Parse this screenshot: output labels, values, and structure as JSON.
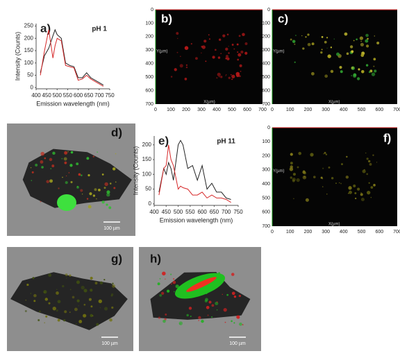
{
  "chart_data": [
    {
      "type": "line",
      "panel_label": "a)",
      "title": "pH 1",
      "x_label": "Emission wavelength (nm)",
      "y_label": "Intensity (Counts)",
      "x": [
        420,
        440,
        460,
        480,
        490,
        500,
        520,
        540,
        560,
        580,
        600,
        620,
        640,
        660,
        680,
        700,
        720
      ],
      "series": [
        {
          "color": "#222222",
          "values": [
            60,
            130,
            160,
            210,
            235,
            215,
            200,
            100,
            90,
            85,
            40,
            40,
            60,
            40,
            30,
            20,
            10
          ]
        },
        {
          "color": "#d62728",
          "values": [
            50,
            150,
            235,
            120,
            170,
            200,
            190,
            90,
            85,
            80,
            30,
            35,
            50,
            35,
            25,
            15,
            5
          ]
        }
      ],
      "xlim": [
        400,
        750
      ],
      "xticks": [
        400,
        450,
        500,
        550,
        600,
        650,
        700,
        750
      ],
      "ylim": [
        -5,
        260
      ],
      "yticks": [
        0,
        50,
        100,
        150,
        200,
        250
      ]
    },
    {
      "type": "line",
      "panel_label": "e)",
      "title": "pH 11",
      "x_label": "Emission wavelength (nm)",
      "y_label": "Intensity (Counts)",
      "x": [
        420,
        440,
        450,
        460,
        470,
        480,
        500,
        510,
        520,
        540,
        560,
        580,
        600,
        620,
        640,
        660,
        680,
        700,
        720
      ],
      "series": [
        {
          "color": "#222222",
          "values": [
            40,
            120,
            100,
            140,
            120,
            80,
            200,
            215,
            200,
            120,
            130,
            80,
            130,
            50,
            70,
            40,
            40,
            20,
            15
          ]
        },
        {
          "color": "#d62728",
          "values": [
            30,
            120,
            130,
            200,
            150,
            130,
            50,
            60,
            55,
            50,
            30,
            30,
            40,
            20,
            30,
            20,
            20,
            15,
            5
          ]
        }
      ],
      "xlim": [
        400,
        750
      ],
      "xticks": [
        400,
        450,
        500,
        550,
        600,
        650,
        700,
        750
      ],
      "ylim": [
        -5,
        230
      ],
      "yticks": [
        0,
        50,
        100,
        150,
        200
      ]
    }
  ],
  "confocal_axis": {
    "ticks": [
      "0",
      "100",
      "200",
      "300",
      "400",
      "500",
      "600",
      "700"
    ],
    "x_label": "X(µm)",
    "y_label": "Y(µm)"
  },
  "images": [
    {
      "label": "b)"
    },
    {
      "label": "c)"
    },
    {
      "label": "d)",
      "scale_bar": "100 µm"
    },
    {
      "label": "f)"
    },
    {
      "label": "g)",
      "scale_bar": "100 µm"
    },
    {
      "label": "h)",
      "scale_bar": "100 µm"
    }
  ]
}
